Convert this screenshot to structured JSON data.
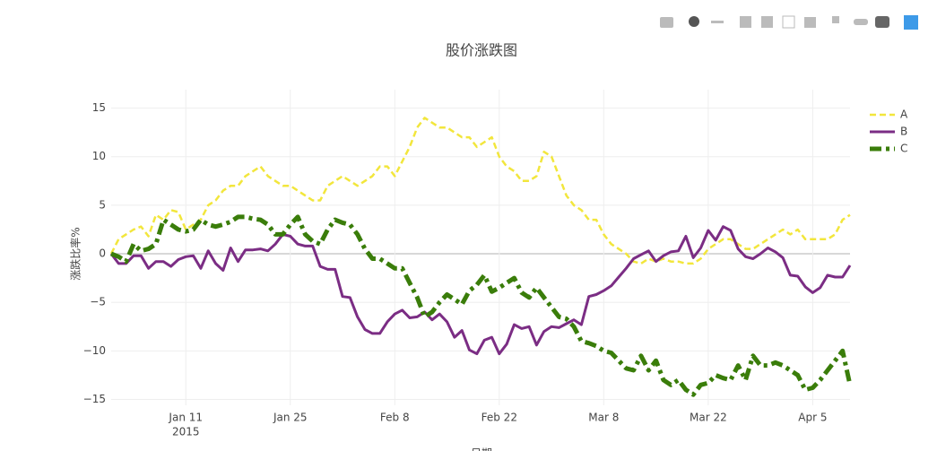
{
  "chart_data": {
    "type": "line",
    "title": "股价涨跌图",
    "x_label": "日期",
    "y_label": "涨跌比率%",
    "x": [
      "2015-01-01",
      "2015-01-02",
      "2015-01-03",
      "2015-01-04",
      "2015-01-05",
      "2015-01-06",
      "2015-01-07",
      "2015-01-08",
      "2015-01-09",
      "2015-01-10",
      "2015-01-11",
      "2015-01-12",
      "2015-01-13",
      "2015-01-14",
      "2015-01-15",
      "2015-01-16",
      "2015-01-17",
      "2015-01-18",
      "2015-01-19",
      "2015-01-20",
      "2015-01-21",
      "2015-01-22",
      "2015-01-23",
      "2015-01-24",
      "2015-01-25",
      "2015-01-26",
      "2015-01-27",
      "2015-01-28",
      "2015-01-29",
      "2015-01-30",
      "2015-01-31",
      "2015-02-01",
      "2015-02-02",
      "2015-02-03",
      "2015-02-04",
      "2015-02-05",
      "2015-02-06",
      "2015-02-07",
      "2015-02-08",
      "2015-02-09",
      "2015-02-10",
      "2015-02-11",
      "2015-02-12",
      "2015-02-13",
      "2015-02-14",
      "2015-02-15",
      "2015-02-16",
      "2015-02-17",
      "2015-02-18",
      "2015-02-19",
      "2015-02-20",
      "2015-02-21",
      "2015-02-22",
      "2015-02-23",
      "2015-02-24",
      "2015-02-25",
      "2015-02-26",
      "2015-02-27",
      "2015-02-28",
      "2015-03-01",
      "2015-03-02",
      "2015-03-03",
      "2015-03-04",
      "2015-03-05",
      "2015-03-06",
      "2015-03-07",
      "2015-03-08",
      "2015-03-09",
      "2015-03-10",
      "2015-03-11",
      "2015-03-12",
      "2015-03-13",
      "2015-03-14",
      "2015-03-15",
      "2015-03-16",
      "2015-03-17",
      "2015-03-18",
      "2015-03-19",
      "2015-03-20",
      "2015-03-21",
      "2015-03-22",
      "2015-03-23",
      "2015-03-24",
      "2015-03-25",
      "2015-03-26",
      "2015-03-27",
      "2015-03-28",
      "2015-03-29",
      "2015-03-30",
      "2015-03-31",
      "2015-04-01",
      "2015-04-02",
      "2015-04-03",
      "2015-04-04",
      "2015-04-05",
      "2015-04-06",
      "2015-04-07",
      "2015-04-08",
      "2015-04-09",
      "2015-04-10"
    ],
    "series": [
      {
        "name": "A",
        "color": "#f2e63c",
        "dash": "dash",
        "width": 2.5,
        "values": [
          0,
          1.5,
          2,
          2.5,
          2.8,
          1.8,
          4,
          3.5,
          4.5,
          4.3,
          2.5,
          3,
          3.5,
          5,
          5.5,
          6.5,
          7,
          7,
          8,
          8.5,
          9,
          8,
          7.5,
          7,
          7,
          6.5,
          6,
          5.5,
          5.5,
          7,
          7.5,
          8,
          7.5,
          7,
          7.5,
          8,
          9,
          9,
          8,
          9.5,
          11,
          13,
          14,
          13.5,
          13,
          13,
          12.5,
          12,
          12,
          11,
          11.5,
          12,
          10,
          9,
          8.5,
          7.5,
          7.5,
          8,
          10.5,
          10,
          8,
          6,
          5,
          4.5,
          3.5,
          3.5,
          2,
          1,
          0.5,
          0,
          -0.8,
          -1,
          -0.5,
          -0.8,
          -0.5,
          -0.8,
          -0.8,
          -1,
          -1,
          -0.5,
          0.5,
          1,
          1.5,
          1.5,
          1,
          0.5,
          0.5,
          1,
          1.5,
          2,
          2.5,
          2,
          2.5,
          1.5,
          1.5,
          1.5,
          1.5,
          2,
          3.5,
          4
        ]
      },
      {
        "name": "B",
        "color": "#7b2d84",
        "dash": "solid",
        "width": 3,
        "values": [
          0,
          -1,
          -1,
          -0.2,
          -0.2,
          -1.5,
          -0.8,
          -0.8,
          -1.3,
          -0.6,
          -0.3,
          -0.2,
          -1.5,
          0.3,
          -1,
          -1.7,
          0.6,
          -0.8,
          0.4,
          0.4,
          0.5,
          0.3,
          1,
          2,
          1.8,
          1,
          0.8,
          0.8,
          -1.3,
          -1.6,
          -1.6,
          -4.4,
          -4.5,
          -6.5,
          -7.8,
          -8.2,
          -8.2,
          -7,
          -6.2,
          -5.8,
          -6.6,
          -6.5,
          -6,
          -6.8,
          -6.2,
          -7,
          -8.6,
          -7.9,
          -9.9,
          -10.3,
          -8.9,
          -8.6,
          -10.3,
          -9.3,
          -7.3,
          -7.7,
          -7.5,
          -9.4,
          -8,
          -7.5,
          -7.6,
          -7.2,
          -6.8,
          -7.3,
          -4.4,
          -4.2,
          -3.8,
          -3.3,
          -2.4,
          -1.5,
          -0.5,
          -0.1,
          0.3,
          -0.8,
          -0.2,
          0.2,
          0.3,
          1.8,
          -0.4,
          0.6,
          2.4,
          1.4,
          2.8,
          2.4,
          0.5,
          -0.3,
          -0.5,
          0,
          0.6,
          0.2,
          -0.4,
          -2.2,
          -2.3,
          -3.4,
          -4,
          -3.5,
          -2.2,
          -2.4,
          -2.4,
          -1.2
        ]
      },
      {
        "name": "C",
        "color": "#3a7d0a",
        "dash": "dashdot",
        "width": 5,
        "values": [
          0,
          -0.3,
          -0.8,
          1,
          0.3,
          0.5,
          1,
          3.5,
          3,
          2.5,
          2.3,
          2.5,
          3.5,
          3,
          2.8,
          3,
          3.3,
          3.8,
          3.8,
          3.6,
          3.5,
          3,
          2,
          2,
          3,
          3.8,
          2,
          1.3,
          1,
          2.5,
          3.5,
          3.2,
          3,
          2,
          0.5,
          -0.5,
          -0.5,
          -1,
          -1.5,
          -1.5,
          -3,
          -4.5,
          -6.5,
          -6,
          -5,
          -4.2,
          -4.7,
          -5.2,
          -3.8,
          -3.2,
          -2.2,
          -3.9,
          -3.5,
          -3,
          -2.5,
          -4,
          -4.5,
          -3.5,
          -4.5,
          -5.5,
          -6.5,
          -6.7,
          -7.5,
          -9,
          -9.2,
          -9.5,
          -10,
          -10.2,
          -11,
          -11.8,
          -12,
          -10.5,
          -12,
          -11,
          -13,
          -13.5,
          -13,
          -14,
          -14.5,
          -13.5,
          -13.3,
          -12.5,
          -12.8,
          -13,
          -11.5,
          -13,
          -10.5,
          -11.5,
          -11.5,
          -11.2,
          -11.5,
          -12,
          -12.5,
          -14,
          -13.8,
          -13,
          -12,
          -11,
          -10,
          -13.5
        ]
      }
    ],
    "xlim": [
      "2015-01-01",
      "2015-04-10"
    ],
    "xticks": [
      {
        "value": "2015-01-11",
        "label": "Jan 11"
      },
      {
        "value": "2015-01-25",
        "label": "Jan 25"
      },
      {
        "value": "2015-02-08",
        "label": "Feb 8"
      },
      {
        "value": "2015-02-22",
        "label": "Feb 22"
      },
      {
        "value": "2015-03-08",
        "label": "Mar 8"
      },
      {
        "value": "2015-03-22",
        "label": "Mar 22"
      },
      {
        "value": "2015-04-05",
        "label": "Apr 5"
      }
    ],
    "x_year_label": "2015",
    "ylim": [
      -15.6,
      16.9
    ],
    "yticks": [
      15,
      10,
      5,
      0,
      {
        "value": -5,
        "label": "−5"
      },
      {
        "value": -10,
        "label": "−10"
      },
      {
        "value": -15,
        "label": "−15"
      }
    ],
    "grid": true,
    "legend": "top-right"
  }
}
